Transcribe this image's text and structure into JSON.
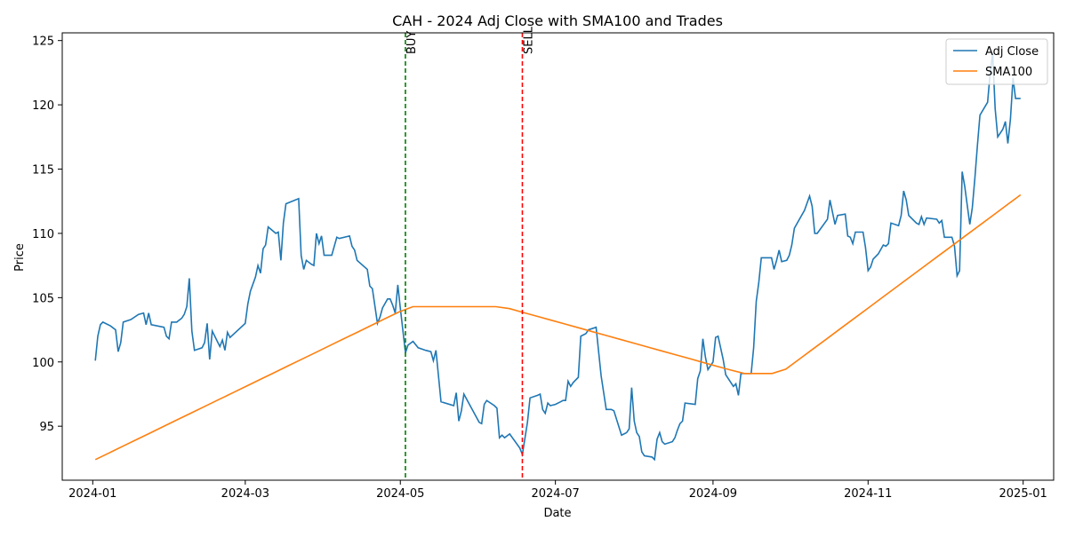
{
  "chart_data": {
    "type": "line",
    "title": "CAH - 2024 Adj Close with SMA100 and Trades",
    "xlabel": "Date",
    "ylabel": "Price",
    "xlim": [
      "2023-12-20",
      "2025-01-13"
    ],
    "ylim": [
      90.8,
      125.6
    ],
    "x_ticks": [
      {
        "date": "2024-01-01",
        "label": "2024-01"
      },
      {
        "date": "2024-03-01",
        "label": "2024-03"
      },
      {
        "date": "2024-05-01",
        "label": "2024-05"
      },
      {
        "date": "2024-07-01",
        "label": "2024-07"
      },
      {
        "date": "2024-09-01",
        "label": "2024-09"
      },
      {
        "date": "2024-11-01",
        "label": "2024-11"
      },
      {
        "date": "2025-01-01",
        "label": "2025-01"
      }
    ],
    "y_ticks": [
      95,
      100,
      105,
      110,
      115,
      120,
      125
    ],
    "grid": false,
    "legend_position": "top-right",
    "series": [
      {
        "name": "Adj Close",
        "color": "#1f77b4",
        "points": [
          [
            "2024-01-02",
            100.1
          ],
          [
            "2024-01-03",
            102.0
          ],
          [
            "2024-01-04",
            102.9
          ],
          [
            "2024-01-05",
            103.1
          ],
          [
            "2024-01-08",
            102.8
          ],
          [
            "2024-01-10",
            102.5
          ],
          [
            "2024-01-11",
            100.8
          ],
          [
            "2024-01-12",
            101.5
          ],
          [
            "2024-01-13",
            103.1
          ],
          [
            "2024-01-16",
            103.3
          ],
          [
            "2024-01-19",
            103.7
          ],
          [
            "2024-01-21",
            103.8
          ],
          [
            "2024-01-22",
            102.9
          ],
          [
            "2024-01-23",
            103.8
          ],
          [
            "2024-01-24",
            102.9
          ],
          [
            "2024-01-29",
            102.7
          ],
          [
            "2024-01-30",
            102.0
          ],
          [
            "2024-01-31",
            101.8
          ],
          [
            "2024-02-01",
            103.1
          ],
          [
            "2024-02-03",
            103.1
          ],
          [
            "2024-02-05",
            103.4
          ],
          [
            "2024-02-06",
            103.7
          ],
          [
            "2024-02-07",
            104.3
          ],
          [
            "2024-02-08",
            106.5
          ],
          [
            "2024-02-09",
            102.4
          ],
          [
            "2024-02-10",
            100.9
          ],
          [
            "2024-02-13",
            101.1
          ],
          [
            "2024-02-14",
            101.5
          ],
          [
            "2024-02-15",
            103.0
          ],
          [
            "2024-02-16",
            100.2
          ],
          [
            "2024-02-17",
            102.4
          ],
          [
            "2024-02-19",
            101.6
          ],
          [
            "2024-02-20",
            101.2
          ],
          [
            "2024-02-21",
            101.7
          ],
          [
            "2024-02-22",
            100.9
          ],
          [
            "2024-02-23",
            102.3
          ],
          [
            "2024-02-24",
            101.9
          ],
          [
            "2024-03-01",
            103.0
          ],
          [
            "2024-03-02",
            104.5
          ],
          [
            "2024-03-03",
            105.5
          ],
          [
            "2024-03-05",
            106.6
          ],
          [
            "2024-03-06",
            107.5
          ],
          [
            "2024-03-07",
            106.9
          ],
          [
            "2024-03-08",
            108.8
          ],
          [
            "2024-03-09",
            109.1
          ],
          [
            "2024-03-10",
            110.5
          ],
          [
            "2024-03-13",
            110.0
          ],
          [
            "2024-03-14",
            110.1
          ],
          [
            "2024-03-15",
            107.9
          ],
          [
            "2024-03-16",
            110.8
          ],
          [
            "2024-03-17",
            112.3
          ],
          [
            "2024-03-22",
            112.7
          ],
          [
            "2024-03-23",
            108.3
          ],
          [
            "2024-03-24",
            107.2
          ],
          [
            "2024-03-25",
            107.9
          ],
          [
            "2024-03-27",
            107.6
          ],
          [
            "2024-03-28",
            107.5
          ],
          [
            "2024-03-29",
            110.0
          ],
          [
            "2024-03-30",
            109.2
          ],
          [
            "2024-03-31",
            109.8
          ],
          [
            "2024-04-01",
            108.3
          ],
          [
            "2024-04-04",
            108.3
          ],
          [
            "2024-04-06",
            109.7
          ],
          [
            "2024-04-07",
            109.6
          ],
          [
            "2024-04-11",
            109.8
          ],
          [
            "2024-04-12",
            109.0
          ],
          [
            "2024-04-13",
            108.7
          ],
          [
            "2024-04-14",
            107.9
          ],
          [
            "2024-04-18",
            107.2
          ],
          [
            "2024-04-19",
            105.9
          ],
          [
            "2024-04-20",
            105.7
          ],
          [
            "2024-04-22",
            103.0
          ],
          [
            "2024-04-23",
            103.5
          ],
          [
            "2024-04-24",
            104.2
          ],
          [
            "2024-04-26",
            104.9
          ],
          [
            "2024-04-27",
            104.9
          ],
          [
            "2024-04-28",
            104.4
          ],
          [
            "2024-04-29",
            103.8
          ],
          [
            "2024-04-30",
            106.0
          ],
          [
            "2024-05-01",
            104.2
          ],
          [
            "2024-05-03",
            100.7
          ],
          [
            "2024-05-04",
            101.3
          ],
          [
            "2024-05-06",
            101.6
          ],
          [
            "2024-05-08",
            101.1
          ],
          [
            "2024-05-11",
            100.9
          ],
          [
            "2024-05-13",
            100.8
          ],
          [
            "2024-05-14",
            100.1
          ],
          [
            "2024-05-15",
            100.9
          ],
          [
            "2024-05-17",
            96.9
          ],
          [
            "2024-05-22",
            96.6
          ],
          [
            "2024-05-23",
            97.6
          ],
          [
            "2024-05-24",
            95.4
          ],
          [
            "2024-05-25",
            96.2
          ],
          [
            "2024-05-26",
            97.5
          ],
          [
            "2024-05-29",
            96.4
          ],
          [
            "2024-06-01",
            95.3
          ],
          [
            "2024-06-02",
            95.2
          ],
          [
            "2024-06-03",
            96.7
          ],
          [
            "2024-06-04",
            97.0
          ],
          [
            "2024-06-07",
            96.6
          ],
          [
            "2024-06-08",
            96.4
          ],
          [
            "2024-06-09",
            94.1
          ],
          [
            "2024-06-10",
            94.3
          ],
          [
            "2024-06-11",
            94.1
          ],
          [
            "2024-06-13",
            94.4
          ],
          [
            "2024-06-17",
            93.3
          ],
          [
            "2024-06-18",
            92.8
          ],
          [
            "2024-06-20",
            95.3
          ],
          [
            "2024-06-21",
            97.2
          ],
          [
            "2024-06-24",
            97.4
          ],
          [
            "2024-06-25",
            97.5
          ],
          [
            "2024-06-26",
            96.3
          ],
          [
            "2024-06-27",
            96.0
          ],
          [
            "2024-06-28",
            96.8
          ],
          [
            "2024-06-29",
            96.6
          ],
          [
            "2024-07-01",
            96.7
          ],
          [
            "2024-07-03",
            96.9
          ],
          [
            "2024-07-04",
            97.0
          ],
          [
            "2024-07-05",
            97.0
          ],
          [
            "2024-07-06",
            98.5
          ],
          [
            "2024-07-07",
            98.1
          ],
          [
            "2024-07-08",
            98.4
          ],
          [
            "2024-07-10",
            98.8
          ],
          [
            "2024-07-11",
            102.0
          ],
          [
            "2024-07-13",
            102.2
          ],
          [
            "2024-07-14",
            102.5
          ],
          [
            "2024-07-17",
            102.7
          ],
          [
            "2024-07-19",
            98.9
          ],
          [
            "2024-07-21",
            96.3
          ],
          [
            "2024-07-23",
            96.3
          ],
          [
            "2024-07-24",
            96.2
          ],
          [
            "2024-07-27",
            94.3
          ],
          [
            "2024-07-28",
            94.4
          ],
          [
            "2024-07-29",
            94.5
          ],
          [
            "2024-07-30",
            94.8
          ],
          [
            "2024-08-01",
            95.4
          ],
          [
            "2024-08-02",
            94.5
          ],
          [
            "2024-08-03",
            94.2
          ],
          [
            "2024-08-04",
            93.0
          ],
          [
            "2024-08-05",
            92.7
          ],
          [
            "2024-08-08",
            92.6
          ],
          [
            "2024-08-09",
            92.4
          ],
          [
            "2024-08-10",
            94.0
          ],
          [
            "2024-08-11",
            94.5
          ],
          [
            "2024-08-12",
            93.8
          ],
          [
            "2024-08-13",
            93.6
          ],
          [
            "2024-08-16",
            93.8
          ],
          [
            "2024-08-17",
            94.1
          ],
          [
            "2024-08-18",
            94.7
          ],
          [
            "2024-08-19",
            95.2
          ],
          [
            "2024-08-20",
            95.4
          ],
          [
            "2024-08-21",
            96.8
          ],
          [
            "2024-08-25",
            96.7
          ],
          [
            "2024-08-26",
            98.7
          ],
          [
            "2024-08-27",
            99.3
          ],
          [
            "2024-08-28",
            101.8
          ],
          [
            "2024-08-29",
            100.4
          ],
          [
            "2024-08-30",
            99.4
          ],
          [
            "2024-07-31",
            98.0
          ]
        ]
      },
      {
        "name": "SMA100",
        "color": "#ff7f0e",
        "points": []
      }
    ],
    "trades": [
      {
        "label": "BUY",
        "date": "2024-05-03",
        "color": "#008000"
      },
      {
        "label": "SELL",
        "date": "2024-06-18",
        "color": "#ff0000"
      }
    ]
  }
}
